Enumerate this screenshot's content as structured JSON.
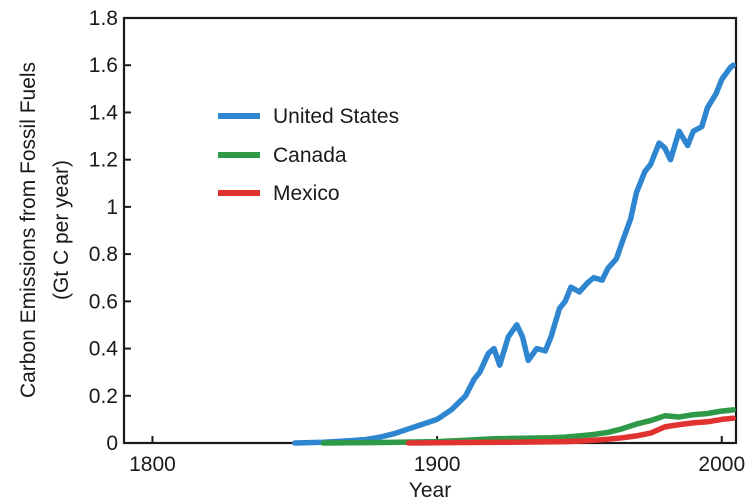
{
  "chart_data": {
    "type": "line",
    "title": "",
    "xlabel": "Year",
    "ylabel": "Carbon Emissions from Fossil Fuels",
    "ylabel_unit": "(Gt C per year)",
    "xlim": [
      1790,
      2005
    ],
    "ylim": [
      0,
      1.8
    ],
    "x_ticks": [
      1800,
      1900,
      2000
    ],
    "y_ticks": [
      0,
      0.2,
      0.4,
      0.6,
      0.8,
      1,
      1.2,
      1.4,
      1.6,
      1.8
    ],
    "x_tick_labels": [
      "1800",
      "1900",
      "2000"
    ],
    "y_tick_labels": [
      "0",
      "0.2",
      "0.4",
      "0.6",
      "0.8",
      "1",
      "1.2",
      "1.4",
      "1.6",
      "1.8"
    ],
    "grid": false,
    "legend_position": "upper-left",
    "series": [
      {
        "name": "United States",
        "color": "#2f86d0",
        "x": [
          1850,
          1860,
          1870,
          1875,
          1880,
          1885,
          1890,
          1895,
          1900,
          1905,
          1910,
          1913,
          1915,
          1918,
          1920,
          1922,
          1925,
          1928,
          1930,
          1932,
          1935,
          1938,
          1940,
          1943,
          1945,
          1947,
          1950,
          1953,
          1955,
          1958,
          1960,
          1963,
          1965,
          1968,
          1970,
          1973,
          1975,
          1978,
          1980,
          1982,
          1985,
          1988,
          1990,
          1993,
          1995,
          1998,
          2000,
          2003,
          2004
        ],
        "y": [
          0.0,
          0.003,
          0.01,
          0.015,
          0.025,
          0.04,
          0.06,
          0.08,
          0.1,
          0.14,
          0.2,
          0.27,
          0.3,
          0.38,
          0.4,
          0.33,
          0.45,
          0.5,
          0.45,
          0.35,
          0.4,
          0.39,
          0.45,
          0.57,
          0.6,
          0.66,
          0.64,
          0.68,
          0.7,
          0.69,
          0.74,
          0.78,
          0.85,
          0.95,
          1.06,
          1.15,
          1.18,
          1.27,
          1.25,
          1.2,
          1.32,
          1.26,
          1.32,
          1.34,
          1.42,
          1.48,
          1.54,
          1.59,
          1.6
        ]
      },
      {
        "name": "Canada",
        "color": "#2e9a47",
        "x": [
          1860,
          1880,
          1900,
          1910,
          1920,
          1930,
          1940,
          1945,
          1950,
          1955,
          1960,
          1965,
          1970,
          1975,
          1980,
          1985,
          1990,
          1995,
          2000,
          2004
        ],
        "y": [
          0.0,
          0.002,
          0.006,
          0.012,
          0.018,
          0.02,
          0.022,
          0.025,
          0.03,
          0.036,
          0.045,
          0.06,
          0.08,
          0.095,
          0.115,
          0.11,
          0.12,
          0.125,
          0.135,
          0.14
        ]
      },
      {
        "name": "Mexico",
        "color": "#e0322f",
        "x": [
          1890,
          1910,
          1930,
          1945,
          1950,
          1955,
          1960,
          1965,
          1970,
          1975,
          1980,
          1985,
          1990,
          1995,
          2000,
          2004
        ],
        "y": [
          0.0,
          0.002,
          0.004,
          0.006,
          0.008,
          0.012,
          0.016,
          0.022,
          0.03,
          0.042,
          0.068,
          0.078,
          0.085,
          0.09,
          0.1,
          0.105
        ]
      }
    ]
  }
}
